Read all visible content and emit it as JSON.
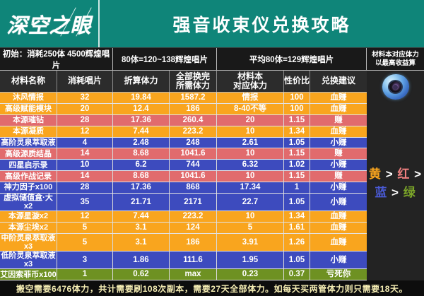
{
  "brand": {
    "logo": "深空之眼",
    "title": "强音收束仪兑换攻略"
  },
  "info_bar": {
    "initial": "初始：消耗250体 4500辉煌唱片",
    "rate_range": "80体=120~138辉煌唱片",
    "rate_average": "平均80体=129辉煌唱片",
    "note_line1": "材料本对应体力",
    "note_line2": "以最高收益算"
  },
  "chart_data": {
    "type": "table",
    "title": "强音收束仪兑换攻略",
    "columns": [
      "材料名称",
      "消耗唱片",
      "折算体力",
      "全部换完\n所需体力",
      "材料本\n对应体力",
      "性价比",
      "兑换建议"
    ],
    "rows": [
      {
        "cells": [
          "沐风情报",
          "32",
          "19.84",
          "1587.2",
          "情报",
          "100",
          "血赚"
        ],
        "tier": "yellow"
      },
      {
        "cells": [
          "高级赋能模块",
          "20",
          "12.4",
          "186",
          "8-40不等",
          "100",
          "血赚"
        ],
        "tier": "yellow"
      },
      {
        "cells": [
          "本源璀钻",
          "28",
          "17.36",
          "260.4",
          "20",
          "1.15",
          "赚"
        ],
        "tier": "red"
      },
      {
        "cells": [
          "本源凝质",
          "12",
          "7.44",
          "223.2",
          "10",
          "1.34",
          "血赚"
        ],
        "tier": "yellow"
      },
      {
        "cells": [
          "高阶灵泉萃取液",
          "4",
          "2.48",
          "248",
          "2.61",
          "1.05",
          "小赚"
        ],
        "tier": "blue"
      },
      {
        "cells": [
          "高级源质结晶",
          "14",
          "8.68",
          "1041.6",
          "10",
          "1.15",
          "赚"
        ],
        "tier": "red"
      },
      {
        "cells": [
          "四星启示录",
          "10",
          "6.2",
          "744",
          "6.32",
          "1.02",
          "小赚"
        ],
        "tier": "blue"
      },
      {
        "cells": [
          "高级作战记录",
          "14",
          "8.68",
          "1041.6",
          "10",
          "1.15",
          "赚"
        ],
        "tier": "red"
      },
      {
        "cells": [
          "神力因子x100",
          "28",
          "17.36",
          "868",
          "17.34",
          "1",
          "小赚"
        ],
        "tier": "blue"
      },
      {
        "cells": [
          "虚拟储值盒·大x2",
          "35",
          "21.71",
          "2171",
          "22.7",
          "1.05",
          "小赚"
        ],
        "tier": "blue"
      },
      {
        "cells": [
          "本源星漩x2",
          "12",
          "7.44",
          "223.2",
          "10",
          "1.34",
          "血赚"
        ],
        "tier": "yellow"
      },
      {
        "cells": [
          "本源尘埃x2",
          "5",
          "3.1",
          "124",
          "5",
          "1.61",
          "血赚"
        ],
        "tier": "yellow"
      },
      {
        "cells": [
          "中阶灵泉萃取液x3",
          "5",
          "3.1",
          "186",
          "3.91",
          "1.26",
          "血赚"
        ],
        "tier": "yellow"
      },
      {
        "cells": [
          "低阶灵泉萃取液x3",
          "3",
          "1.86",
          "111.6",
          "1.95",
          "1.05",
          "小赚"
        ],
        "tier": "blue"
      },
      {
        "cells": [
          "艾因索菲币x100",
          "1",
          "0.62",
          "max",
          "0.23",
          "0.37",
          "亏死你"
        ],
        "tier": "green"
      }
    ],
    "tier_colors": {
      "yellow": "#f9a51e",
      "red": "#e16b6d",
      "blue": "#3d4bbe",
      "green": "#6e9122"
    },
    "legend_order": "黄 > 红 > 蓝 > 绿"
  },
  "right_panel": {
    "priority_line1": [
      {
        "t": "黄",
        "c": "#f9a51e"
      },
      {
        "t": " > ",
        "c": "#ffffff"
      },
      {
        "t": "红",
        "c": "#ef8080"
      },
      {
        "t": " > ",
        "c": "#ffffff"
      }
    ],
    "priority_line2": [
      {
        "t": "蓝",
        "c": "#4a5ad6"
      },
      {
        "t": " > ",
        "c": "#ffffff"
      },
      {
        "t": "绿",
        "c": "#7ca629"
      }
    ]
  },
  "footer": {
    "text": "搬空需要6476体力，共计需要刷108次副本，需要27天全部体力。如每天买两管体力则只需要18天。"
  },
  "colors": {
    "header_teal": "#0f8579",
    "dark_bg": "#191919",
    "footer_text": "#f5edb3"
  }
}
